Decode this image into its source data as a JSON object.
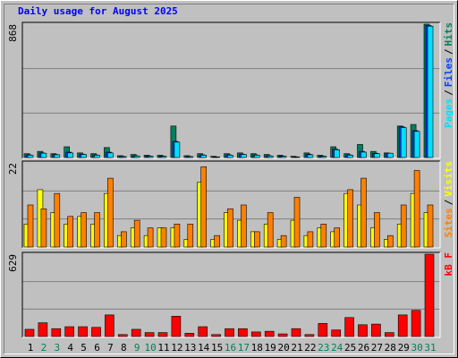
{
  "chart_data": [
    {
      "type": "bar",
      "title": "Daily usage for August 2025",
      "legend_separator": "/",
      "ylim": [
        0,
        868
      ],
      "yticks": [
        868
      ],
      "series": [
        {
          "name": "Hits",
          "color": "#00805c",
          "values": [
            25,
            40,
            25,
            70,
            30,
            25,
            65,
            12,
            20,
            15,
            15,
            205,
            12,
            25,
            8,
            25,
            30,
            25,
            20,
            15,
            8,
            30,
            15,
            70,
            25,
            85,
            40,
            30,
            205,
            215,
            868
          ]
        },
        {
          "name": "Files",
          "color": "#0040ff",
          "values": [
            18,
            30,
            20,
            35,
            22,
            18,
            35,
            8,
            12,
            10,
            10,
            105,
            8,
            18,
            5,
            18,
            22,
            18,
            12,
            10,
            5,
            22,
            10,
            55,
            18,
            40,
            28,
            28,
            200,
            175,
            860
          ]
        },
        {
          "name": "Pages",
          "color": "#00e0ff",
          "values": [
            15,
            28,
            18,
            30,
            20,
            15,
            30,
            6,
            10,
            8,
            8,
            100,
            6,
            15,
            4,
            15,
            20,
            15,
            10,
            8,
            4,
            18,
            8,
            50,
            15,
            35,
            25,
            28,
            195,
            170,
            855
          ]
        }
      ]
    },
    {
      "type": "bar",
      "legend_separator": "/",
      "ylim": [
        0,
        22
      ],
      "yticks": [
        22
      ],
      "series": [
        {
          "name": "Visits",
          "color": "#ffff00",
          "values": [
            6,
            15,
            9,
            6,
            8,
            6,
            14,
            3,
            5,
            3,
            5,
            5,
            2,
            17,
            2,
            9,
            7,
            4,
            6,
            2,
            7,
            3,
            5,
            4,
            14,
            11,
            5,
            2,
            6,
            14,
            9
          ]
        },
        {
          "name": "Sites",
          "color": "#ff8000",
          "values": [
            11,
            10,
            14,
            8,
            9,
            9,
            18,
            4,
            7,
            5,
            5,
            6,
            6,
            21,
            3,
            10,
            11,
            4,
            9,
            3,
            13,
            4,
            6,
            5,
            15,
            18,
            9,
            3,
            11,
            20,
            11
          ]
        }
      ]
    },
    {
      "type": "bar",
      "ylim": [
        0,
        629
      ],
      "yticks": [
        629
      ],
      "categories": [
        "1",
        "2",
        "3",
        "4",
        "5",
        "6",
        "7",
        "8",
        "9",
        "10",
        "11",
        "12",
        "13",
        "14",
        "15",
        "16",
        "17",
        "18",
        "19",
        "20",
        "21",
        "22",
        "23",
        "24",
        "25",
        "26",
        "27",
        "28",
        "29",
        "30",
        "31"
      ],
      "category_colors": [
        "#000000",
        "#00805c",
        "#00805c",
        "#000000",
        "#000000",
        "#000000",
        "#000000",
        "#000000",
        "#00805c",
        "#00805c",
        "#000000",
        "#000000",
        "#000000",
        "#000000",
        "#000000",
        "#00805c",
        "#00805c",
        "#000000",
        "#000000",
        "#000000",
        "#000000",
        "#000000",
        "#00805c",
        "#00805c",
        "#000000",
        "#000000",
        "#000000",
        "#000000",
        "#000000",
        "#00805c",
        "#00805c"
      ],
      "series": [
        {
          "name": "kB F",
          "color": "#ff0000",
          "values": [
            55,
            105,
            60,
            75,
            75,
            70,
            165,
            15,
            55,
            30,
            30,
            155,
            25,
            75,
            15,
            60,
            60,
            35,
            40,
            20,
            60,
            15,
            100,
            50,
            145,
            90,
            95,
            30,
            165,
            200,
            629
          ]
        }
      ]
    }
  ]
}
